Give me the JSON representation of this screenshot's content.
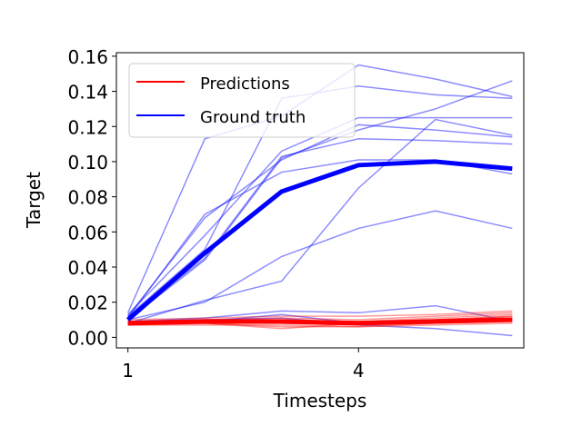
{
  "chart_data": {
    "type": "line",
    "title": "",
    "xlabel": "Timesteps",
    "ylabel": "Target",
    "x": [
      1,
      2,
      3,
      4,
      5,
      6
    ],
    "xticks": [
      1,
      4
    ],
    "xlim": [
      0.85,
      6.15
    ],
    "ylim": [
      -0.006,
      0.162
    ],
    "yticks": [
      0.0,
      0.02,
      0.04,
      0.06,
      0.08,
      0.1,
      0.12,
      0.14,
      0.16
    ],
    "ytick_labels": [
      "0.00",
      "0.02",
      "0.04",
      "0.06",
      "0.08",
      "0.10",
      "0.12",
      "0.14",
      "0.16"
    ],
    "legend": {
      "placement": "upper-left",
      "entries": [
        {
          "label": "Predictions",
          "color": "#ff0000"
        },
        {
          "label": "Ground truth",
          "color": "#0000ff"
        }
      ]
    },
    "ground_truth_samples": [
      [
        0.014,
        0.113,
        0.126,
        0.155,
        0.147,
        0.137
      ],
      [
        0.012,
        0.05,
        0.136,
        0.143,
        0.138,
        0.136
      ],
      [
        0.013,
        0.058,
        0.106,
        0.125,
        0.125,
        0.125
      ],
      [
        0.011,
        0.07,
        0.094,
        0.101,
        0.101,
        0.093
      ],
      [
        0.012,
        0.068,
        0.101,
        0.121,
        0.118,
        0.114
      ],
      [
        0.011,
        0.045,
        0.103,
        0.113,
        0.112,
        0.11
      ],
      [
        0.01,
        0.044,
        0.102,
        0.118,
        0.13,
        0.146
      ],
      [
        0.01,
        0.02,
        0.046,
        0.062,
        0.072,
        0.062
      ],
      [
        0.008,
        0.021,
        0.032,
        0.085,
        0.124,
        0.115
      ],
      [
        0.009,
        0.011,
        0.015,
        0.014,
        0.018,
        0.009
      ],
      [
        0.008,
        0.009,
        0.013,
        0.008,
        0.01,
        0.011
      ],
      [
        0.009,
        0.01,
        0.011,
        0.007,
        0.005,
        0.001
      ]
    ],
    "ground_truth_mean": [
      0.01,
      0.048,
      0.083,
      0.098,
      0.1,
      0.096
    ],
    "prediction_samples": [
      [
        0.008,
        0.009,
        0.009,
        0.008,
        0.01,
        0.011
      ],
      [
        0.009,
        0.01,
        0.01,
        0.009,
        0.01,
        0.012
      ],
      [
        0.008,
        0.008,
        0.008,
        0.007,
        0.009,
        0.01
      ],
      [
        0.007,
        0.008,
        0.006,
        0.006,
        0.008,
        0.009
      ],
      [
        0.009,
        0.01,
        0.011,
        0.01,
        0.012,
        0.014
      ],
      [
        0.008,
        0.009,
        0.01,
        0.009,
        0.011,
        0.013
      ],
      [
        0.007,
        0.007,
        0.007,
        0.006,
        0.007,
        0.008
      ],
      [
        0.01,
        0.011,
        0.012,
        0.012,
        0.013,
        0.015
      ],
      [
        0.008,
        0.008,
        0.005,
        0.008,
        0.009,
        0.01
      ],
      [
        0.009,
        0.01,
        0.009,
        0.009,
        0.01,
        0.012
      ]
    ],
    "prediction_mean": [
      0.008,
      0.009,
      0.009,
      0.008,
      0.009,
      0.01
    ],
    "colors": {
      "prediction": "#ff0000",
      "ground_truth": "#0000ff"
    },
    "grid": false
  }
}
